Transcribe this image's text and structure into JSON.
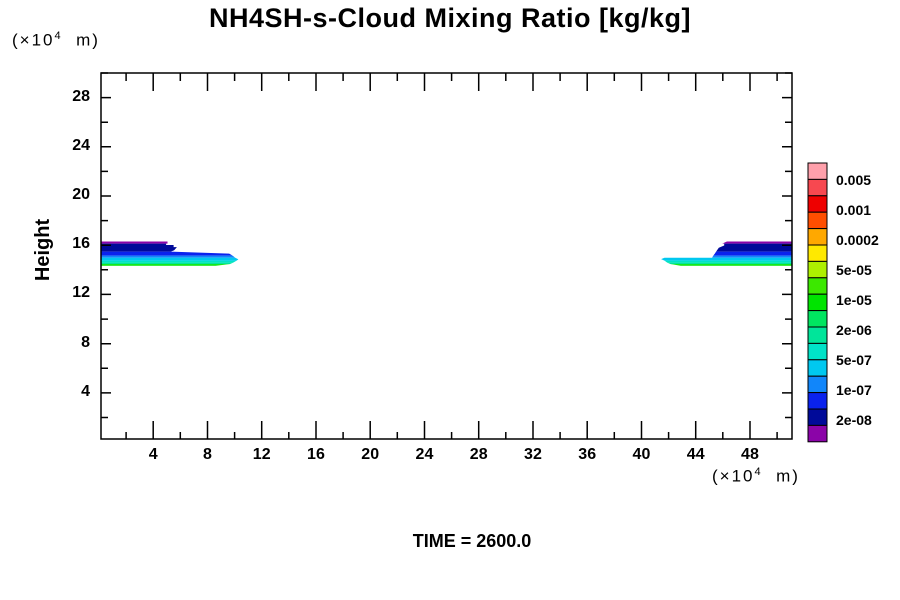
{
  "title": "NH4SH-s-Cloud Mixing Ratio [kg/kg]",
  "footer": {
    "time_label": "TIME = 2600.0"
  },
  "y_axis": {
    "label": "Height",
    "unit_prefix": "(×10",
    "unit_sup": "4",
    "unit_suffix": "  m)",
    "major_ticks": [
      4,
      8,
      12,
      16,
      20,
      24,
      28
    ],
    "minor_ticks": [
      2,
      6,
      10,
      14,
      18,
      22,
      26,
      30
    ]
  },
  "x_axis": {
    "unit_prefix": "(×10",
    "unit_sup": "4",
    "unit_suffix": "  m)",
    "major_ticks": [
      4,
      8,
      12,
      16,
      20,
      24,
      28,
      32,
      36,
      40,
      44,
      48
    ],
    "minor_ticks": [
      2,
      6,
      10,
      14,
      18,
      22,
      26,
      30,
      34,
      38,
      42,
      46,
      50
    ]
  },
  "colorbar": {
    "colors": [
      "#ffa0ab",
      "#f74850",
      "#ee0000",
      "#ff4e00",
      "#ffa800",
      "#ffe900",
      "#aef000",
      "#3ce800",
      "#00e400",
      "#00e560",
      "#00e59a",
      "#00e3c8",
      "#00c8f0",
      "#1186fa",
      "#0a22ee",
      "#000a99",
      "#8b04a8"
    ],
    "labels": [
      "0.005",
      "0.001",
      "0.0002",
      "5e-05",
      "1e-05",
      "2e-06",
      "5e-07",
      "1e-07",
      "2e-08"
    ]
  },
  "chart_data": {
    "type": "filled_contour",
    "title": "NH4SH-s-Cloud Mixing Ratio [kg/kg]",
    "time": 2600.0,
    "xlabel_unit": "(×10^4 m)",
    "ylabel": "Height",
    "ylabel_unit": "(×10^4 m)",
    "x_range": [
      0.15,
      51.1
    ],
    "y_range": [
      0.25,
      30.0
    ],
    "contour_levels": [
      0.005,
      0.001,
      0.0002,
      5e-05,
      1e-05,
      2e-06,
      5e-07,
      1e-07,
      2e-08
    ],
    "legend_position": "right",
    "grid": false,
    "background": "#ffffff",
    "clouds": [
      {
        "name": "left-cloud-band",
        "layers": [
          {
            "color": "#8b04a8",
            "points": [
              [
                0.17,
                16.3
              ],
              [
                5.05,
                16.3
              ],
              [
                5.05,
                16.13
              ],
              [
                0.17,
                16.13
              ]
            ]
          },
          {
            "color": "#000a99",
            "points": [
              [
                0.17,
                16.13
              ],
              [
                4.95,
                16.13
              ],
              [
                4.95,
                16.02
              ],
              [
                5.5,
                16.02
              ],
              [
                5.5,
                15.85
              ],
              [
                5.75,
                15.85
              ],
              [
                5.55,
                15.6
              ],
              [
                5.3,
                15.48
              ],
              [
                0.17,
                15.48
              ]
            ]
          },
          {
            "color": "#0a22ee",
            "points": [
              [
                0.17,
                15.48
              ],
              [
                5.3,
                15.48
              ],
              [
                9.6,
                15.32
              ],
              [
                9.85,
                15.16
              ],
              [
                0.17,
                15.16
              ]
            ]
          },
          {
            "color": "#1186fa",
            "points": [
              [
                0.17,
                15.16
              ],
              [
                9.85,
                15.16
              ],
              [
                10.05,
                14.99
              ],
              [
                0.17,
                14.99
              ]
            ]
          },
          {
            "color": "#00c8f0",
            "points": [
              [
                0.17,
                14.99
              ],
              [
                10.05,
                14.99
              ],
              [
                10.28,
                14.85
              ],
              [
                10.15,
                14.75
              ],
              [
                0.17,
                14.75
              ]
            ]
          },
          {
            "color": "#00e3c8",
            "points": [
              [
                0.17,
                14.75
              ],
              [
                10.15,
                14.75
              ],
              [
                9.9,
                14.59
              ],
              [
                0.17,
                14.59
              ]
            ]
          },
          {
            "color": "#00e59a",
            "points": [
              [
                0.17,
                14.59
              ],
              [
                9.9,
                14.59
              ],
              [
                9.65,
                14.47
              ],
              [
                0.17,
                14.47
              ]
            ]
          },
          {
            "color": "#00e400",
            "points": [
              [
                0.17,
                14.47
              ],
              [
                9.65,
                14.47
              ],
              [
                8.6,
                14.34
              ],
              [
                0.17,
                14.34
              ]
            ]
          }
        ]
      },
      {
        "name": "right-cloud-band",
        "layers": [
          {
            "color": "#8b04a8",
            "points": [
              [
                46.3,
                16.3
              ],
              [
                51.1,
                16.3
              ],
              [
                51.1,
                16.13
              ],
              [
                45.95,
                16.13
              ]
            ]
          },
          {
            "color": "#000a99",
            "points": [
              [
                46.1,
                16.13
              ],
              [
                51.1,
                16.13
              ],
              [
                51.1,
                15.48
              ],
              [
                45.5,
                15.48
              ],
              [
                45.7,
                15.8
              ],
              [
                46.1,
                15.98
              ]
            ]
          },
          {
            "color": "#0a22ee",
            "points": [
              [
                45.5,
                15.48
              ],
              [
                51.1,
                15.48
              ],
              [
                51.1,
                15.16
              ],
              [
                45.3,
                15.16
              ],
              [
                45.42,
                15.34
              ]
            ]
          },
          {
            "color": "#1186fa",
            "points": [
              [
                45.3,
                15.16
              ],
              [
                51.1,
                15.16
              ],
              [
                51.1,
                14.99
              ],
              [
                45.2,
                14.99
              ]
            ]
          },
          {
            "color": "#00c8f0",
            "points": [
              [
                41.45,
                14.87
              ],
              [
                41.7,
                14.99
              ],
              [
                51.1,
                14.99
              ],
              [
                51.1,
                14.75
              ],
              [
                41.7,
                14.75
              ]
            ]
          },
          {
            "color": "#00e3c8",
            "points": [
              [
                41.7,
                14.75
              ],
              [
                51.1,
                14.75
              ],
              [
                51.1,
                14.59
              ],
              [
                41.9,
                14.59
              ]
            ]
          },
          {
            "color": "#00e59a",
            "points": [
              [
                41.9,
                14.59
              ],
              [
                51.1,
                14.59
              ],
              [
                51.1,
                14.47
              ],
              [
                42.15,
                14.47
              ]
            ]
          },
          {
            "color": "#00e400",
            "points": [
              [
                42.15,
                14.47
              ],
              [
                51.1,
                14.47
              ],
              [
                51.1,
                14.34
              ],
              [
                42.9,
                14.34
              ]
            ]
          }
        ]
      }
    ]
  }
}
